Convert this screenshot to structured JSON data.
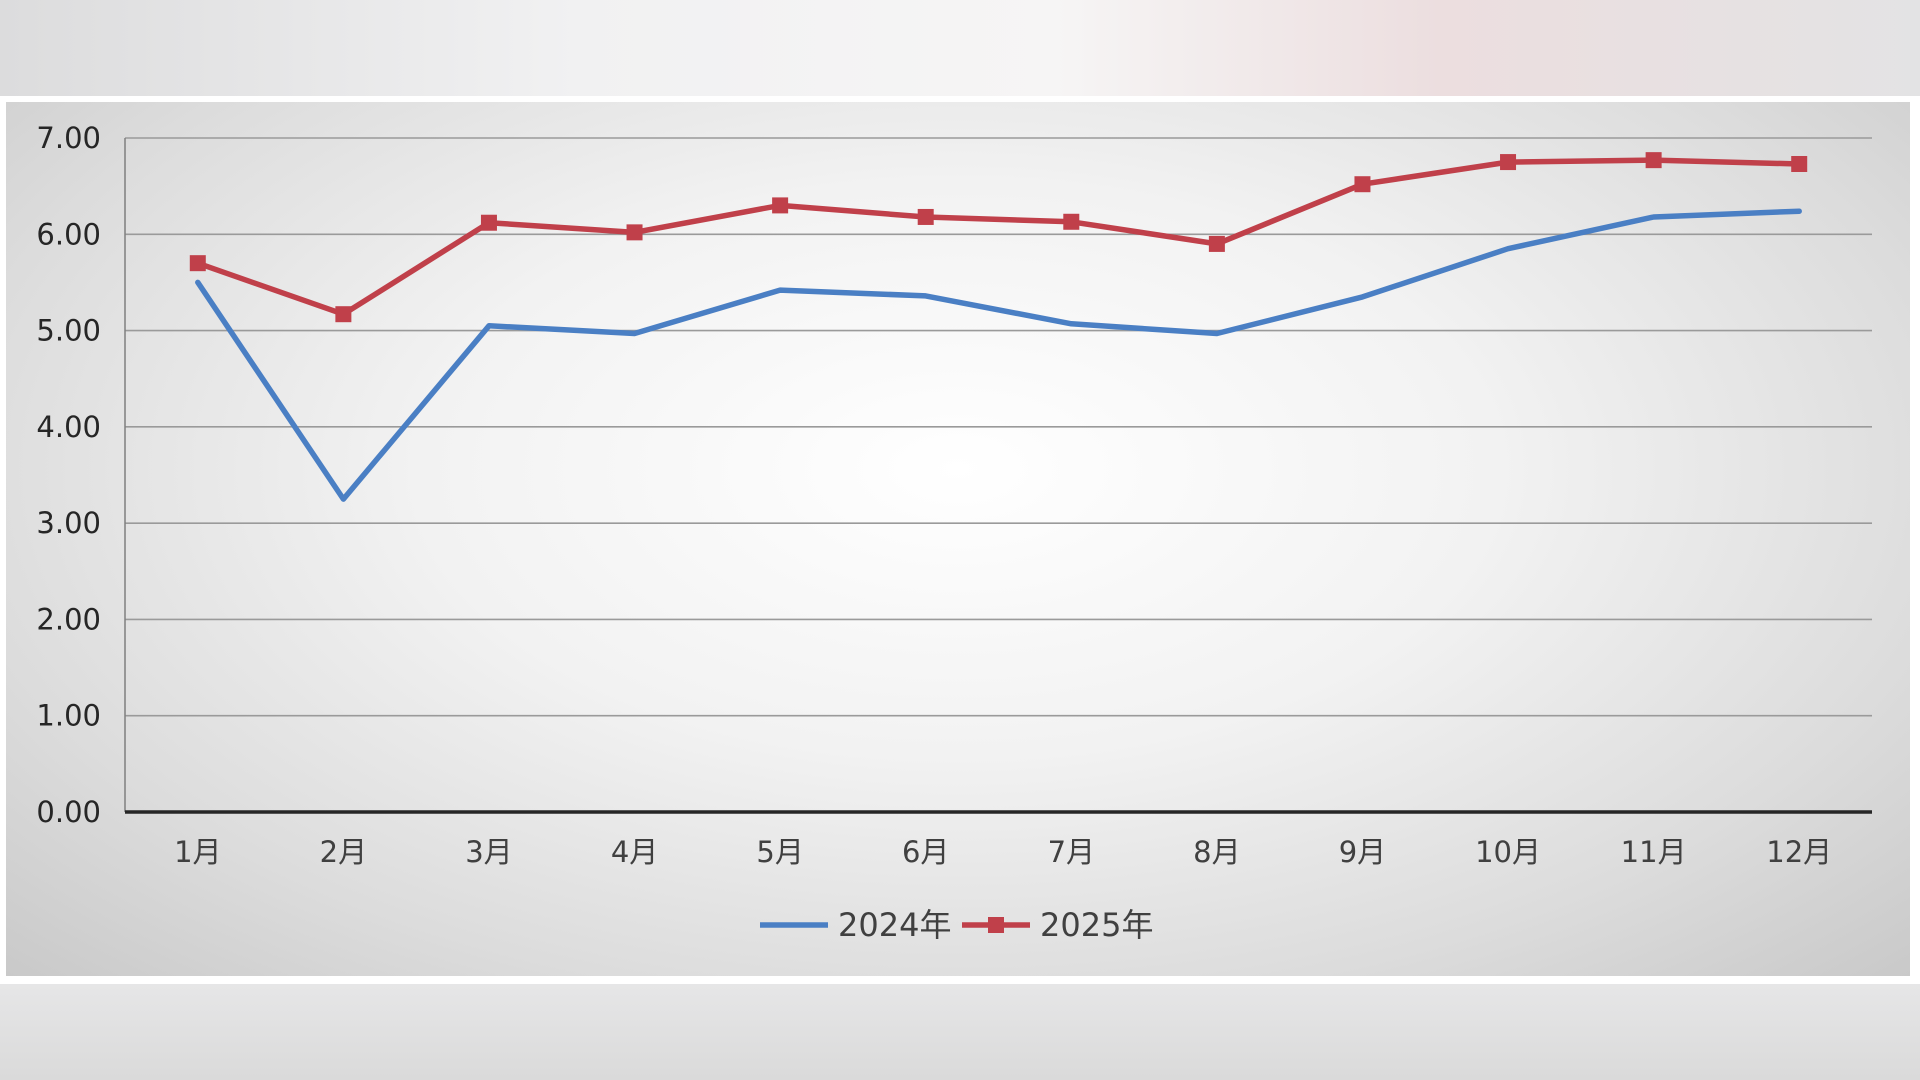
{
  "chart_data": {
    "type": "line",
    "categories": [
      "1月",
      "2月",
      "3月",
      "4月",
      "5月",
      "6月",
      "7月",
      "8月",
      "9月",
      "10月",
      "11月",
      "12月"
    ],
    "series": [
      {
        "name": "2024年",
        "color": "#4a7fc4",
        "marker": "none",
        "values": [
          5.5,
          3.25,
          5.05,
          4.97,
          5.42,
          5.36,
          5.07,
          4.97,
          5.35,
          5.85,
          6.18,
          6.24
        ]
      },
      {
        "name": "2025年",
        "color": "#c0404a",
        "marker": "square",
        "values": [
          5.7,
          5.17,
          6.12,
          6.02,
          6.3,
          6.18,
          6.13,
          5.9,
          6.52,
          6.75,
          6.77,
          6.73
        ]
      }
    ],
    "y_ticks": [
      "0.00",
      "1.00",
      "2.00",
      "3.00",
      "4.00",
      "5.00",
      "6.00",
      "7.00"
    ],
    "ylim": [
      0,
      7
    ],
    "grid": true,
    "legend_position": "bottom",
    "title": "",
    "xlabel": "",
    "ylabel": ""
  }
}
